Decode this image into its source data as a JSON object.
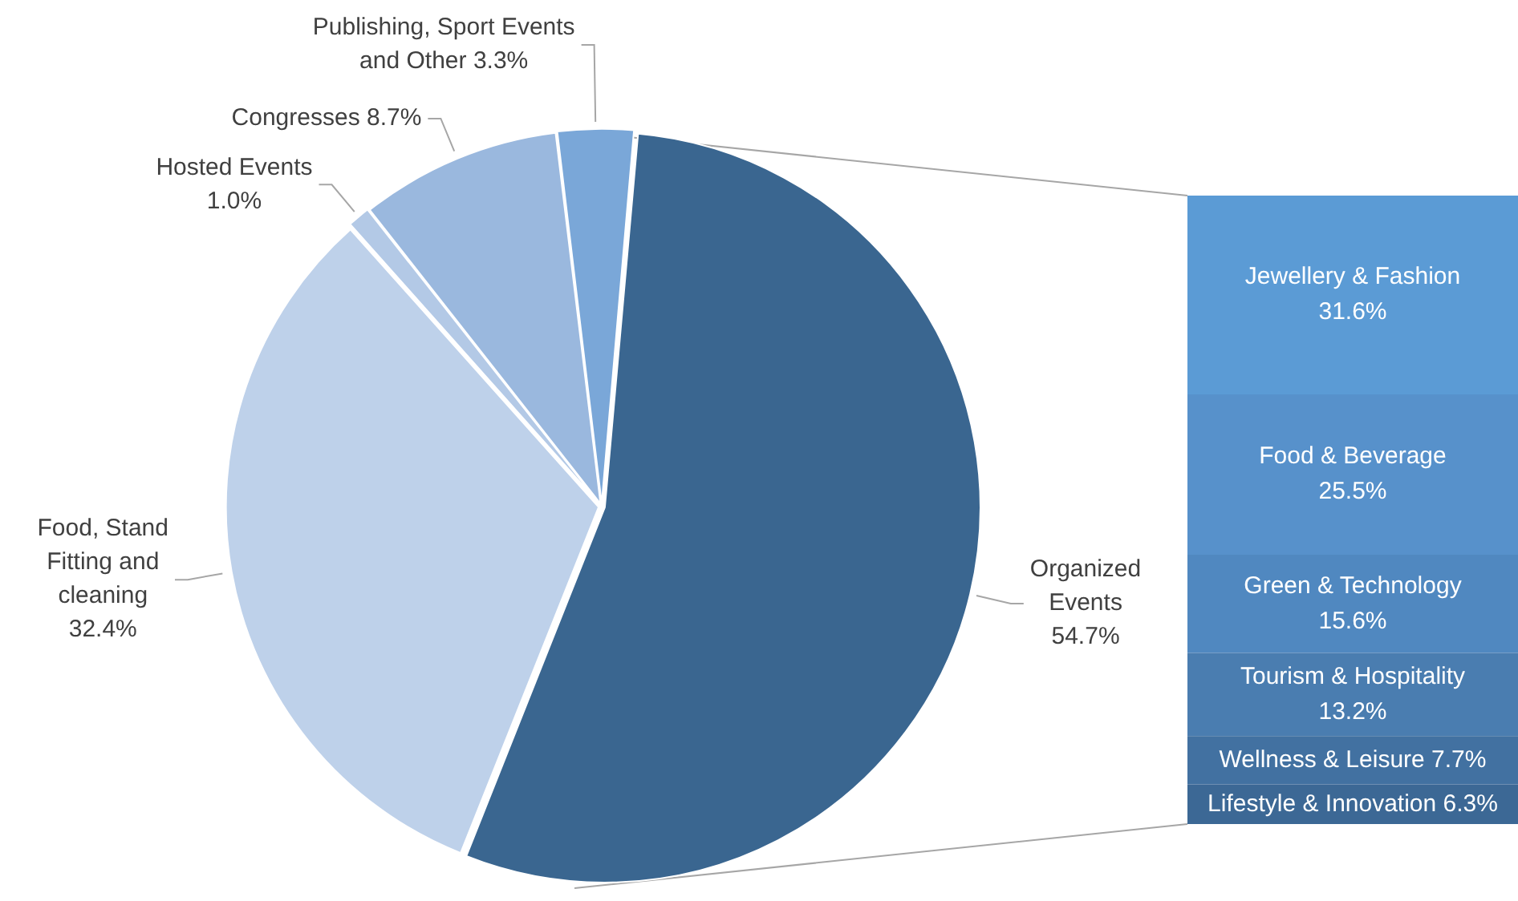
{
  "chart_data": [
    {
      "type": "pie",
      "categories": [
        "Organized Events",
        "Food, Stand Fitting and cleaning",
        "Hosted Events",
        "Congresses",
        "Publishing, Sport Events and Other"
      ],
      "values": [
        54.7,
        32.4,
        1.0,
        8.7,
        3.3
      ],
      "colors": [
        "#3a6690",
        "#bed1ea",
        "#b3c9e6",
        "#9ab8de",
        "#7aa7d8"
      ],
      "value_labels": [
        "54.7%",
        "32.4%",
        "1.0%",
        "8.7%",
        "3.3%"
      ],
      "legend": false
    },
    {
      "type": "bar",
      "stacked": true,
      "categories": [
        null
      ],
      "legend": false,
      "series": [
        {
          "name": "Lifestyle & Innovation",
          "color": "#3c6895",
          "values": [
            6.3
          ],
          "value_labels": [
            "6.3%"
          ]
        },
        {
          "name": "Wellness & Leisure",
          "color": "#4271a1",
          "values": [
            7.7
          ],
          "value_labels": [
            "7.7%"
          ]
        },
        {
          "name": "Tourism & Hospitality",
          "color": "#4a7db0",
          "values": [
            13.2
          ],
          "value_labels": [
            "13.2%"
          ]
        },
        {
          "name": "Green & Technology",
          "color": "#5088c0",
          "values": [
            15.6
          ],
          "value_labels": [
            "15.6%"
          ]
        },
        {
          "name": "Food & Beverage",
          "color": "#5791cb",
          "values": [
            25.5
          ],
          "value_labels": [
            "25.5%"
          ]
        },
        {
          "name": "Jewellery & Fashion",
          "color": "#5b9bd5",
          "values": [
            31.6
          ],
          "value_labels": [
            "31.6%"
          ]
        }
      ]
    }
  ]
}
